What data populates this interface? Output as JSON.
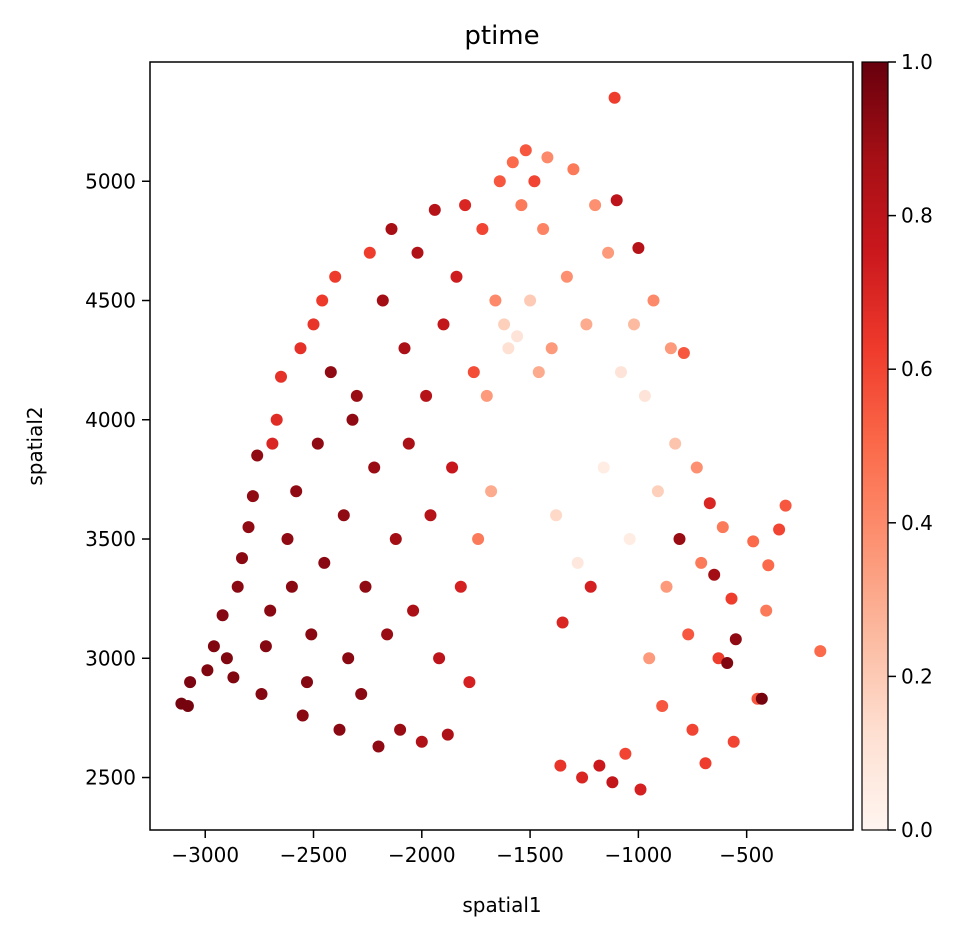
{
  "chart_data": {
    "type": "scatter",
    "title": "ptime",
    "xlabel": "spatial1",
    "ylabel": "spatial2",
    "xlim": [
      -3255,
      -9
    ],
    "ylim": [
      2280,
      5500
    ],
    "xticks": [
      -3000,
      -2500,
      -2000,
      -1500,
      -1000,
      -500
    ],
    "xtick_labels": [
      "−3000",
      "−2500",
      "−2000",
      "−1500",
      "−1000",
      "−500"
    ],
    "yticks": [
      2500,
      3000,
      3500,
      4000,
      4500,
      5000
    ],
    "ytick_labels": [
      "2500",
      "3000",
      "3500",
      "4000",
      "4500",
      "5000"
    ],
    "colorbar": {
      "colormap": "Reds",
      "range": [
        0.0,
        1.0
      ],
      "ticks": [
        0.0,
        0.2,
        0.4,
        0.6,
        0.8,
        1.0
      ],
      "tick_labels": [
        "0.0",
        "0.2",
        "0.4",
        "0.6",
        "0.8",
        "1.0"
      ],
      "stops": [
        "#fff5f0",
        "#fee0d2",
        "#fcbba1",
        "#fc9272",
        "#fb6a4a",
        "#ef3b2c",
        "#cb181d",
        "#a50f15",
        "#67000d"
      ]
    },
    "grid": false,
    "points_columns": [
      "spatial1",
      "spatial2",
      "ptime"
    ],
    "points": [
      [
        -3110,
        2810,
        0.97
      ],
      [
        -3080,
        2800,
        0.97
      ],
      [
        -3070,
        2900,
        0.96
      ],
      [
        -2990,
        2950,
        0.95
      ],
      [
        -2960,
        3050,
        0.95
      ],
      [
        -2920,
        3180,
        0.94
      ],
      [
        -2900,
        3000,
        0.95
      ],
      [
        -2870,
        2920,
        0.95
      ],
      [
        -2850,
        3300,
        0.93
      ],
      [
        -2830,
        3420,
        0.93
      ],
      [
        -2800,
        3550,
        0.92
      ],
      [
        -2780,
        3680,
        0.92
      ],
      [
        -2760,
        3850,
        0.92
      ],
      [
        -2740,
        2850,
        0.94
      ],
      [
        -2720,
        3050,
        0.94
      ],
      [
        -2700,
        3200,
        0.93
      ],
      [
        -2690,
        3900,
        0.7
      ],
      [
        -2670,
        4000,
        0.68
      ],
      [
        -2650,
        4180,
        0.66
      ],
      [
        -2620,
        3500,
        0.92
      ],
      [
        -2600,
        3300,
        0.93
      ],
      [
        -2580,
        3700,
        0.92
      ],
      [
        -2560,
        4300,
        0.66
      ],
      [
        -2550,
        2760,
        0.93
      ],
      [
        -2530,
        2900,
        0.94
      ],
      [
        -2510,
        3100,
        0.93
      ],
      [
        -2500,
        4400,
        0.65
      ],
      [
        -2480,
        3900,
        0.92
      ],
      [
        -2460,
        4500,
        0.63
      ],
      [
        -2450,
        3400,
        0.93
      ],
      [
        -2420,
        4200,
        0.92
      ],
      [
        -2400,
        4600,
        0.63
      ],
      [
        -2380,
        2700,
        0.93
      ],
      [
        -2360,
        3600,
        0.92
      ],
      [
        -2340,
        3000,
        0.93
      ],
      [
        -2320,
        4000,
        0.92
      ],
      [
        -2300,
        4100,
        0.9
      ],
      [
        -2280,
        2850,
        0.93
      ],
      [
        -2260,
        3300,
        0.92
      ],
      [
        -2240,
        4700,
        0.62
      ],
      [
        -2220,
        3800,
        0.9
      ],
      [
        -2200,
        2630,
        0.92
      ],
      [
        -2180,
        4500,
        0.88
      ],
      [
        -2160,
        3100,
        0.9
      ],
      [
        -2140,
        4800,
        0.87
      ],
      [
        -2120,
        3500,
        0.88
      ],
      [
        -2100,
        2700,
        0.9
      ],
      [
        -2080,
        4300,
        0.86
      ],
      [
        -2060,
        3900,
        0.86
      ],
      [
        -2040,
        3200,
        0.86
      ],
      [
        -2020,
        4700,
        0.84
      ],
      [
        -2000,
        2650,
        0.84
      ],
      [
        -1980,
        4100,
        0.82
      ],
      [
        -1960,
        3600,
        0.82
      ],
      [
        -1940,
        4880,
        0.82
      ],
      [
        -1920,
        3000,
        0.8
      ],
      [
        -1900,
        4400,
        0.78
      ],
      [
        -1880,
        2680,
        0.85
      ],
      [
        -1860,
        3800,
        0.76
      ],
      [
        -1840,
        4600,
        0.74
      ],
      [
        -1820,
        3300,
        0.72
      ],
      [
        -1800,
        4900,
        0.7
      ],
      [
        -1780,
        2900,
        0.72
      ],
      [
        -1760,
        4200,
        0.58
      ],
      [
        -1740,
        3500,
        0.45
      ],
      [
        -1720,
        4800,
        0.6
      ],
      [
        -1700,
        4100,
        0.35
      ],
      [
        -1680,
        3700,
        0.3
      ],
      [
        -1660,
        4500,
        0.4
      ],
      [
        -1640,
        5000,
        0.55
      ],
      [
        -1620,
        4400,
        0.18
      ],
      [
        -1600,
        4300,
        0.12
      ],
      [
        -1580,
        5080,
        0.5
      ],
      [
        -1560,
        4350,
        0.1
      ],
      [
        -1540,
        4900,
        0.45
      ],
      [
        -1520,
        5130,
        0.55
      ],
      [
        -1500,
        4500,
        0.2
      ],
      [
        -1480,
        5000,
        0.6
      ],
      [
        -1460,
        4200,
        0.3
      ],
      [
        -1440,
        4800,
        0.42
      ],
      [
        -1420,
        5100,
        0.4
      ],
      [
        -1400,
        4300,
        0.35
      ],
      [
        -1380,
        3600,
        0.15
      ],
      [
        -1360,
        2550,
        0.65
      ],
      [
        -1350,
        3150,
        0.7
      ],
      [
        -1330,
        4600,
        0.38
      ],
      [
        -1300,
        5050,
        0.45
      ],
      [
        -1280,
        3400,
        0.08
      ],
      [
        -1260,
        2500,
        0.7
      ],
      [
        -1240,
        4400,
        0.3
      ],
      [
        -1220,
        3300,
        0.72
      ],
      [
        -1200,
        4900,
        0.38
      ],
      [
        -1180,
        2550,
        0.75
      ],
      [
        -1160,
        3800,
        0.05
      ],
      [
        -1140,
        4700,
        0.35
      ],
      [
        -1120,
        2480,
        0.78
      ],
      [
        -1110,
        5350,
        0.62
      ],
      [
        -1100,
        4920,
        0.8
      ],
      [
        -1080,
        4200,
        0.1
      ],
      [
        -1060,
        2600,
        0.6
      ],
      [
        -1040,
        3500,
        0.05
      ],
      [
        -1020,
        4400,
        0.25
      ],
      [
        -1000,
        4720,
        0.82
      ],
      [
        -990,
        2450,
        0.72
      ],
      [
        -970,
        4100,
        0.1
      ],
      [
        -950,
        3000,
        0.35
      ],
      [
        -930,
        4500,
        0.4
      ],
      [
        -910,
        3700,
        0.18
      ],
      [
        -890,
        2800,
        0.55
      ],
      [
        -870,
        3300,
        0.35
      ],
      [
        -850,
        4300,
        0.35
      ],
      [
        -830,
        3900,
        0.22
      ],
      [
        -810,
        3500,
        0.9
      ],
      [
        -790,
        4280,
        0.55
      ],
      [
        -770,
        3100,
        0.55
      ],
      [
        -750,
        2700,
        0.6
      ],
      [
        -730,
        3800,
        0.38
      ],
      [
        -710,
        3400,
        0.45
      ],
      [
        -690,
        2560,
        0.62
      ],
      [
        -670,
        3650,
        0.7
      ],
      [
        -650,
        3350,
        0.88
      ],
      [
        -630,
        3000,
        0.62
      ],
      [
        -610,
        3550,
        0.45
      ],
      [
        -590,
        2980,
        0.95
      ],
      [
        -570,
        3250,
        0.62
      ],
      [
        -560,
        2650,
        0.6
      ],
      [
        -550,
        3080,
        0.92
      ],
      [
        -470,
        3490,
        0.5
      ],
      [
        -450,
        2830,
        0.55
      ],
      [
        -430,
        2830,
        0.97
      ],
      [
        -410,
        3200,
        0.45
      ],
      [
        -400,
        3390,
        0.5
      ],
      [
        -350,
        3540,
        0.6
      ],
      [
        -320,
        3640,
        0.55
      ],
      [
        -160,
        3030,
        0.5
      ]
    ]
  }
}
